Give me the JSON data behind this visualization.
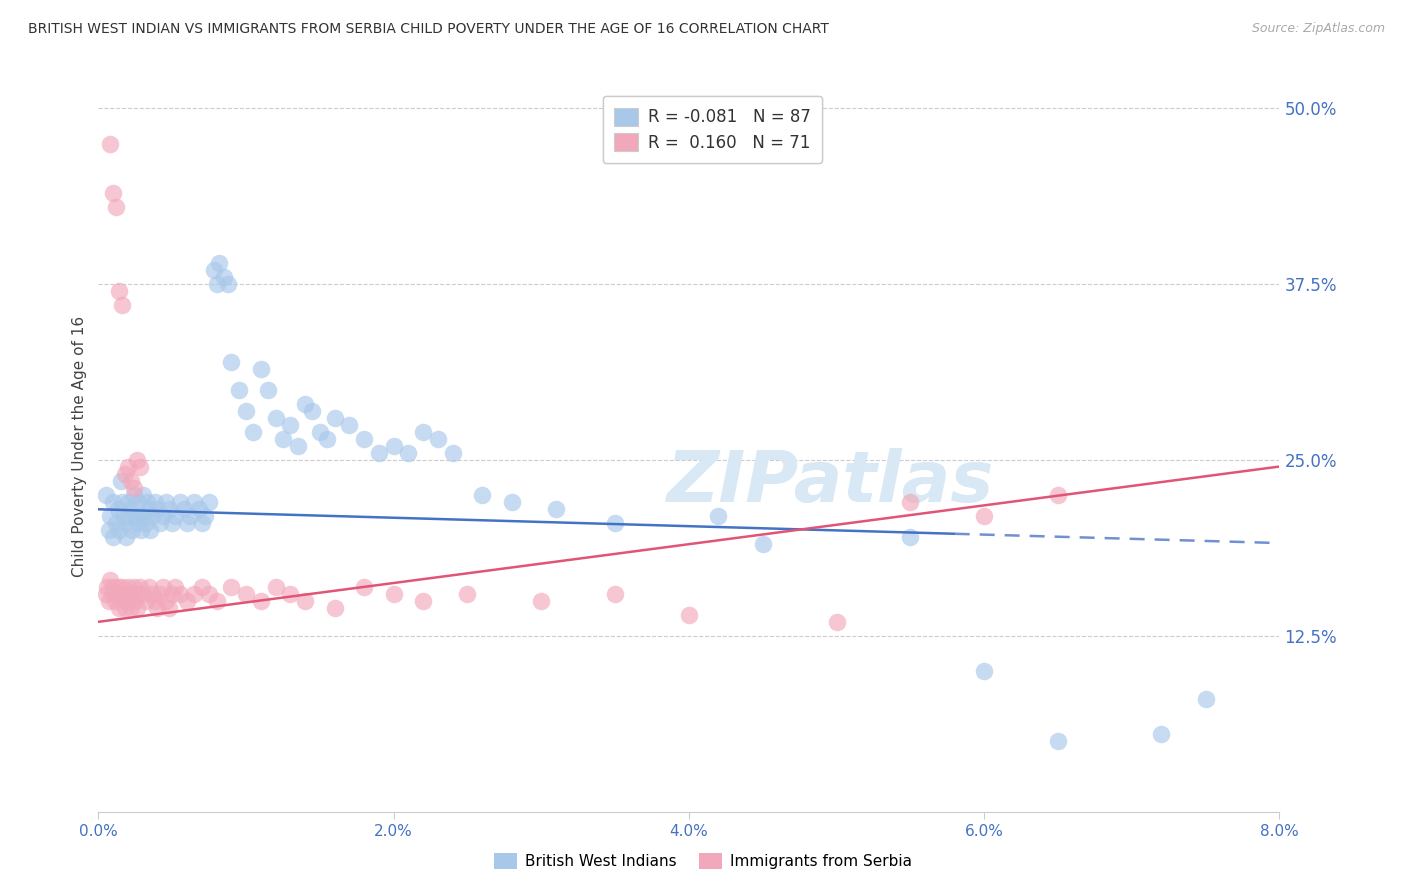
{
  "title": "BRITISH WEST INDIAN VS IMMIGRANTS FROM SERBIA CHILD POVERTY UNDER THE AGE OF 16 CORRELATION CHART",
  "source": "Source: ZipAtlas.com",
  "ylabel": "Child Poverty Under the Age of 16",
  "xlabel_ticks": [
    "0.0%",
    "2.0%",
    "4.0%",
    "6.0%",
    "8.0%"
  ],
  "xlabel_vals": [
    0.0,
    2.0,
    4.0,
    6.0,
    8.0
  ],
  "ylabel_vals": [
    12.5,
    25.0,
    37.5,
    50.0
  ],
  "xlim": [
    0.0,
    8.0
  ],
  "ylim": [
    0.0,
    52.0
  ],
  "blue_R": "-0.081",
  "blue_N": "87",
  "pink_R": "0.160",
  "pink_N": "71",
  "blue_color": "#a8c8ea",
  "pink_color": "#f2a8bb",
  "blue_line_color": "#4472c4",
  "blue_dash_color": "#7090d0",
  "pink_line_color": "#e05575",
  "legend_label_blue": "British West Indians",
  "legend_label_pink": "Immigrants from Serbia",
  "blue_slope": -0.3,
  "blue_intercept": 21.5,
  "blue_solid_end": 5.8,
  "pink_slope": 1.38,
  "pink_intercept": 13.5,
  "watermark": "ZIPatlas",
  "blue_scatter_x": [
    0.05,
    0.07,
    0.08,
    0.1,
    0.1,
    0.12,
    0.13,
    0.14,
    0.15,
    0.16,
    0.17,
    0.18,
    0.19,
    0.2,
    0.21,
    0.22,
    0.23,
    0.24,
    0.25,
    0.26,
    0.27,
    0.28,
    0.29,
    0.3,
    0.31,
    0.32,
    0.33,
    0.34,
    0.35,
    0.36,
    0.38,
    0.4,
    0.42,
    0.44,
    0.46,
    0.48,
    0.5,
    0.52,
    0.55,
    0.58,
    0.6,
    0.62,
    0.65,
    0.68,
    0.7,
    0.72,
    0.75,
    0.78,
    0.8,
    0.82,
    0.85,
    0.88,
    0.9,
    0.95,
    1.0,
    1.05,
    1.1,
    1.15,
    1.2,
    1.25,
    1.3,
    1.35,
    1.4,
    1.45,
    1.5,
    1.55,
    1.6,
    1.7,
    1.8,
    1.9,
    2.0,
    2.1,
    2.2,
    2.3,
    2.4,
    2.6,
    2.8,
    3.1,
    3.5,
    4.2,
    4.5,
    5.5,
    6.0,
    6.5,
    7.2,
    7.5
  ],
  "blue_scatter_y": [
    22.5,
    20.0,
    21.0,
    22.0,
    19.5,
    20.5,
    21.5,
    20.0,
    23.5,
    22.0,
    21.0,
    20.5,
    19.5,
    21.0,
    22.0,
    21.5,
    20.0,
    22.5,
    21.0,
    20.5,
    22.0,
    21.0,
    20.0,
    22.5,
    21.0,
    20.5,
    22.0,
    21.5,
    20.0,
    21.0,
    22.0,
    21.5,
    20.5,
    21.0,
    22.0,
    21.5,
    20.5,
    21.0,
    22.0,
    21.5,
    20.5,
    21.0,
    22.0,
    21.5,
    20.5,
    21.0,
    22.0,
    38.5,
    37.5,
    39.0,
    38.0,
    37.5,
    32.0,
    30.0,
    28.5,
    27.0,
    31.5,
    30.0,
    28.0,
    26.5,
    27.5,
    26.0,
    29.0,
    28.5,
    27.0,
    26.5,
    28.0,
    27.5,
    26.5,
    25.5,
    26.0,
    25.5,
    27.0,
    26.5,
    25.5,
    22.5,
    22.0,
    21.5,
    20.5,
    21.0,
    19.0,
    19.5,
    10.0,
    5.0,
    5.5,
    8.0
  ],
  "pink_scatter_x": [
    0.05,
    0.06,
    0.07,
    0.08,
    0.09,
    0.1,
    0.11,
    0.12,
    0.13,
    0.14,
    0.15,
    0.16,
    0.17,
    0.18,
    0.19,
    0.2,
    0.21,
    0.22,
    0.23,
    0.24,
    0.25,
    0.26,
    0.27,
    0.28,
    0.3,
    0.32,
    0.34,
    0.36,
    0.38,
    0.4,
    0.42,
    0.44,
    0.46,
    0.48,
    0.5,
    0.52,
    0.55,
    0.6,
    0.65,
    0.7,
    0.75,
    0.8,
    0.9,
    1.0,
    1.1,
    1.2,
    1.3,
    1.4,
    1.6,
    1.8,
    2.0,
    2.2,
    2.5,
    3.0,
    3.5,
    4.0,
    5.0,
    5.5,
    6.0,
    6.5,
    0.08,
    0.1,
    0.12,
    0.14,
    0.16,
    0.18,
    0.2,
    0.22,
    0.24,
    0.26,
    0.28
  ],
  "pink_scatter_y": [
    15.5,
    16.0,
    15.0,
    16.5,
    15.5,
    16.0,
    15.0,
    15.5,
    16.0,
    14.5,
    15.5,
    16.0,
    15.0,
    14.5,
    15.5,
    16.0,
    15.0,
    14.5,
    15.5,
    16.0,
    15.0,
    14.5,
    15.5,
    16.0,
    15.5,
    15.0,
    16.0,
    15.5,
    15.0,
    14.5,
    15.5,
    16.0,
    15.0,
    14.5,
    15.5,
    16.0,
    15.5,
    15.0,
    15.5,
    16.0,
    15.5,
    15.0,
    16.0,
    15.5,
    15.0,
    16.0,
    15.5,
    15.0,
    14.5,
    16.0,
    15.5,
    15.0,
    15.5,
    15.0,
    15.5,
    14.0,
    13.5,
    22.0,
    21.0,
    22.5,
    47.5,
    44.0,
    43.0,
    37.0,
    36.0,
    24.0,
    24.5,
    23.5,
    23.0,
    25.0,
    24.5
  ]
}
